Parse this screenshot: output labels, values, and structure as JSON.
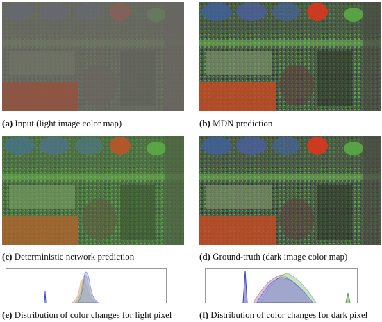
{
  "panels": [
    {
      "label": "(a)",
      "caption": "Input (light image color map)"
    },
    {
      "label": "(b)",
      "caption": "MDN prediction"
    },
    {
      "label": "(c)",
      "caption": "Deterministic network prediction"
    },
    {
      "label": "(d)",
      "caption": "Ground-truth (dark image color map)"
    },
    {
      "label": "(e)",
      "caption": "Distribution of color changes for light pixel"
    },
    {
      "label": "(f)",
      "caption": "Distribution of color changes for dark pixel"
    }
  ]
}
